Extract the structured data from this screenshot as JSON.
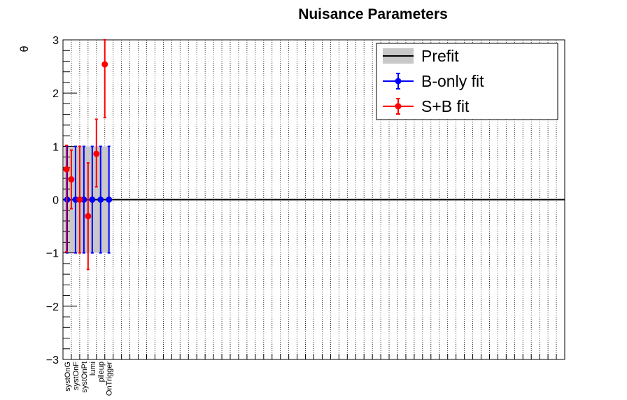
{
  "chart_data": {
    "type": "scatter",
    "title": "Nuisance Parameters",
    "xlabel": "",
    "ylabel": "θ",
    "ylim": [
      -3,
      3
    ],
    "y_ticks": [
      "3",
      "2",
      "1",
      "0",
      "−1",
      "−2",
      "−3"
    ],
    "categories": [
      "systOnG",
      "systOnF",
      "systOnPt",
      "lumi",
      "pileup",
      "OnTrigger"
    ],
    "n_bins": 60,
    "grid": true,
    "legend_position": "top-right",
    "legend": [
      "Prefit",
      "B-only fit",
      "S+B fit"
    ],
    "prefit": {
      "name": "Prefit",
      "center": 0,
      "band_low": -1,
      "band_high": 1,
      "color": "#c8c8c8"
    },
    "series": [
      {
        "name": "B-only fit",
        "color": "#0000ff",
        "x": [
          0.5,
          1.5,
          2.5,
          3.5,
          4.5,
          5.5
        ],
        "values": [
          0,
          0,
          0,
          0,
          0,
          0
        ],
        "err_low": [
          1,
          1,
          1,
          1,
          1,
          1
        ],
        "err_high": [
          1,
          1,
          1,
          1,
          1,
          1
        ]
      },
      {
        "name": "S+B fit",
        "color": "#ff0000",
        "x": [
          0.0,
          1.0,
          2.0,
          3.0,
          4.0,
          5.0
        ],
        "values": [
          0.57,
          0.38,
          0.0,
          -0.31,
          0.86,
          2.54
        ],
        "err_low": [
          1.55,
          0.55,
          1.0,
          1.0,
          0.62,
          1.0
        ],
        "err_high": [
          0.45,
          0.55,
          1.0,
          1.0,
          0.65,
          0.46
        ]
      }
    ]
  }
}
